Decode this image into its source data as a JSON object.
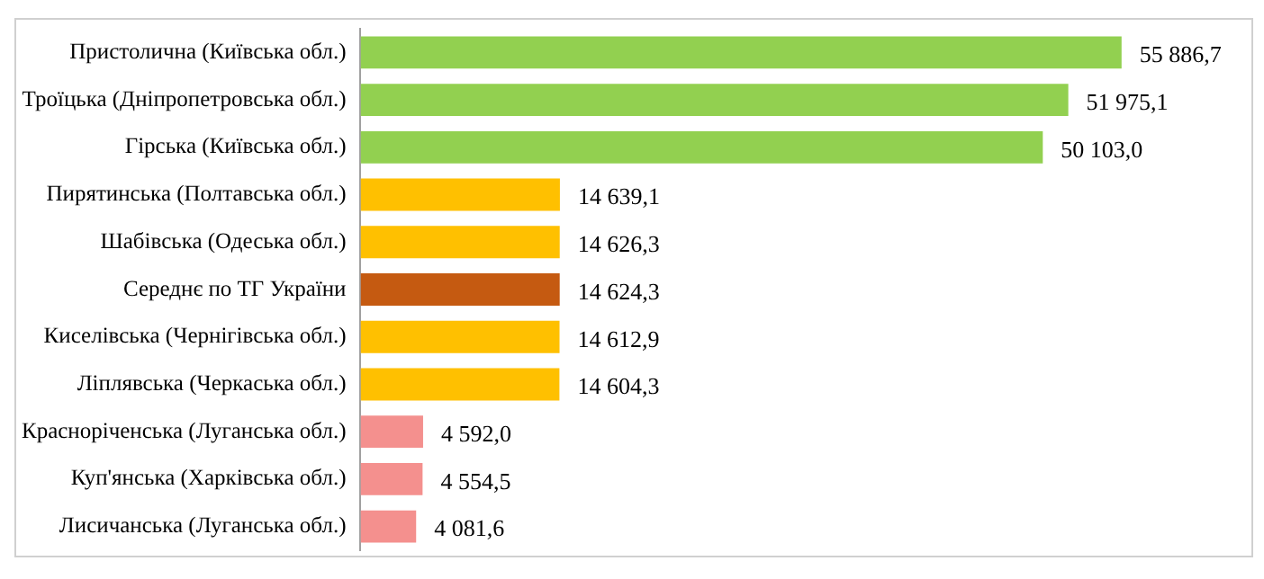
{
  "chart_data": {
    "type": "bar",
    "orientation": "horizontal",
    "categories": [
      "Пристолична (Київська обл.)",
      "Троїцька (Дніпропетровська обл.)",
      "Гірська (Київська обл.)",
      "Пирятинська (Полтавська обл.)",
      "Шабівська (Одеська обл.)",
      "Середнє по ТГ України",
      "Киселівська (Чернігівська обл.)",
      "Ліплявська (Черкаська обл.)",
      "Красноріченська (Луганська обл.)",
      "Куп'янська (Харківська обл.)",
      "Лисичанська (Луганська обл.)"
    ],
    "values": [
      55886.7,
      51975.1,
      50103.0,
      14639.1,
      14626.3,
      14624.3,
      14612.9,
      14604.3,
      4592.0,
      4554.5,
      4081.6
    ],
    "value_labels": [
      "55 886,7",
      "51 975,1",
      "50 103,0",
      "14 639,1",
      "14 626,3",
      "14 624,3",
      "14 612,9",
      "14 604,3",
      "4 592,0",
      "4 554,5",
      "4 081,6"
    ],
    "colors": [
      "#92d050",
      "#92d050",
      "#92d050",
      "#ffc000",
      "#ffc000",
      "#c55a11",
      "#ffc000",
      "#ffc000",
      "#f4908e",
      "#f4908e",
      "#f4908e"
    ],
    "tick_labels": "y"
  }
}
